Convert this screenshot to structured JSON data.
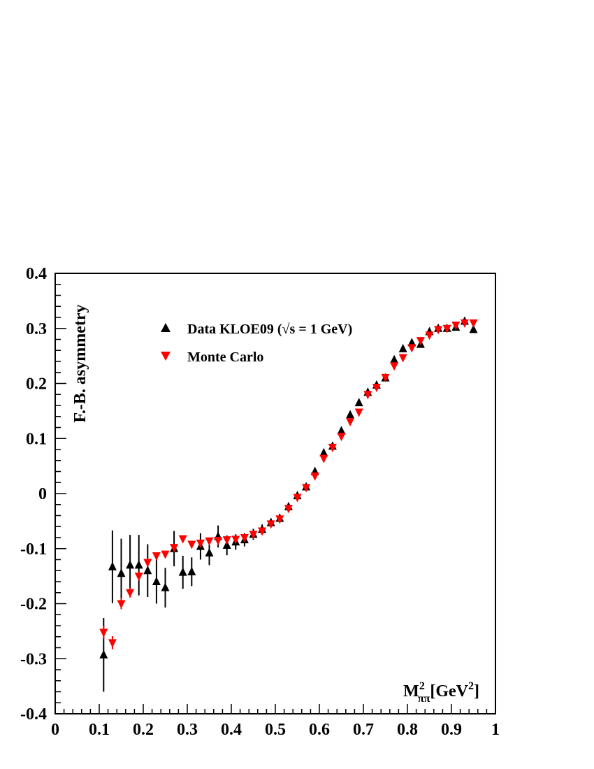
{
  "chart_data": {
    "type": "scatter",
    "xlim": [
      0,
      1
    ],
    "ylim": [
      -0.4,
      0.4
    ],
    "x_ticks": [
      "0",
      "0.1",
      "0.2",
      "0.3",
      "0.4",
      "0.5",
      "0.6",
      "0.7",
      "0.8",
      "0.9",
      "1"
    ],
    "y_ticks": [
      "0.4",
      "0.3",
      "0.2",
      "0.1",
      "0",
      "-0.1",
      "-0.2",
      "-0.3",
      "-0.4"
    ],
    "xlabel": {
      "base": "M",
      "sup": "2",
      "sub": "ππ",
      "unit_open": "[GeV",
      "unit_sup": "2",
      "unit_close": "]"
    },
    "ylabel": "F.-B. asymmetry",
    "legend_position": "top-left",
    "series": [
      {
        "name": "Data KLOE09 (√s = 1 GeV)",
        "color": "#000000",
        "marker": "triangle-up",
        "x": [
          0.11,
          0.13,
          0.15,
          0.17,
          0.19,
          0.21,
          0.23,
          0.25,
          0.27,
          0.29,
          0.31,
          0.33,
          0.35,
          0.37,
          0.39,
          0.41,
          0.43,
          0.45,
          0.47,
          0.49,
          0.51,
          0.53,
          0.55,
          0.57,
          0.59,
          0.61,
          0.63,
          0.65,
          0.67,
          0.69,
          0.71,
          0.73,
          0.75,
          0.77,
          0.79,
          0.81,
          0.83,
          0.85,
          0.87,
          0.89,
          0.91,
          0.93,
          0.95
        ],
        "y": [
          -0.293,
          -0.133,
          -0.145,
          -0.13,
          -0.13,
          -0.14,
          -0.16,
          -0.171,
          -0.1,
          -0.143,
          -0.142,
          -0.096,
          -0.108,
          -0.078,
          -0.094,
          -0.088,
          -0.084,
          -0.074,
          -0.065,
          -0.053,
          -0.045,
          -0.024,
          -0.004,
          0.012,
          0.04,
          0.074,
          0.086,
          0.114,
          0.143,
          0.165,
          0.184,
          0.197,
          0.21,
          0.243,
          0.263,
          0.274,
          0.271,
          0.294,
          0.3,
          0.3,
          0.302,
          0.313,
          0.298
        ],
        "yerr": [
          0.067,
          0.066,
          0.063,
          0.055,
          0.055,
          0.048,
          0.04,
          0.036,
          0.032,
          0.03,
          0.026,
          0.024,
          0.022,
          0.02,
          0.018,
          0.014,
          0.012,
          0.01,
          0.009,
          0.008,
          0.008,
          0.007,
          0.007,
          0.006,
          0.006,
          0.006,
          0.006,
          0.006,
          0.005,
          0.005,
          0.005,
          0.005,
          0.005,
          0.005,
          0.005,
          0.005,
          0.005,
          0.005,
          0.005,
          0.005,
          0.005,
          0.005,
          0.005
        ]
      },
      {
        "name": "Monte Carlo",
        "color": "#ff0000",
        "marker": "triangle-down",
        "x": [
          0.11,
          0.13,
          0.15,
          0.17,
          0.19,
          0.21,
          0.23,
          0.25,
          0.27,
          0.29,
          0.31,
          0.33,
          0.35,
          0.37,
          0.39,
          0.41,
          0.43,
          0.45,
          0.47,
          0.49,
          0.51,
          0.53,
          0.55,
          0.57,
          0.59,
          0.61,
          0.63,
          0.65,
          0.67,
          0.69,
          0.71,
          0.73,
          0.75,
          0.77,
          0.79,
          0.81,
          0.83,
          0.85,
          0.87,
          0.89,
          0.91,
          0.93,
          0.95
        ],
        "y": [
          -0.252,
          -0.271,
          -0.2,
          -0.18,
          -0.15,
          -0.125,
          -0.113,
          -0.11,
          -0.098,
          -0.082,
          -0.092,
          -0.09,
          -0.086,
          -0.085,
          -0.084,
          -0.083,
          -0.08,
          -0.074,
          -0.068,
          -0.055,
          -0.046,
          -0.027,
          -0.007,
          0.011,
          0.032,
          0.064,
          0.084,
          0.104,
          0.131,
          0.148,
          0.18,
          0.193,
          0.211,
          0.232,
          0.247,
          0.265,
          0.278,
          0.288,
          0.298,
          0.3,
          0.306,
          0.31,
          0.31
        ],
        "yerr": [
          0.012,
          0.012,
          0.01,
          0.009,
          0.008,
          0.007,
          0.006,
          0.006,
          0.005,
          0.005,
          0.005,
          0.004,
          0.004,
          0.004,
          0.004,
          0.004,
          0.004,
          0.004,
          0.004,
          0.004,
          0.004,
          0.004,
          0.004,
          0.004,
          0.004,
          0.004,
          0.004,
          0.004,
          0.004,
          0.004,
          0.004,
          0.004,
          0.004,
          0.004,
          0.004,
          0.004,
          0.004,
          0.004,
          0.004,
          0.004,
          0.004,
          0.004,
          0.004
        ]
      }
    ]
  }
}
